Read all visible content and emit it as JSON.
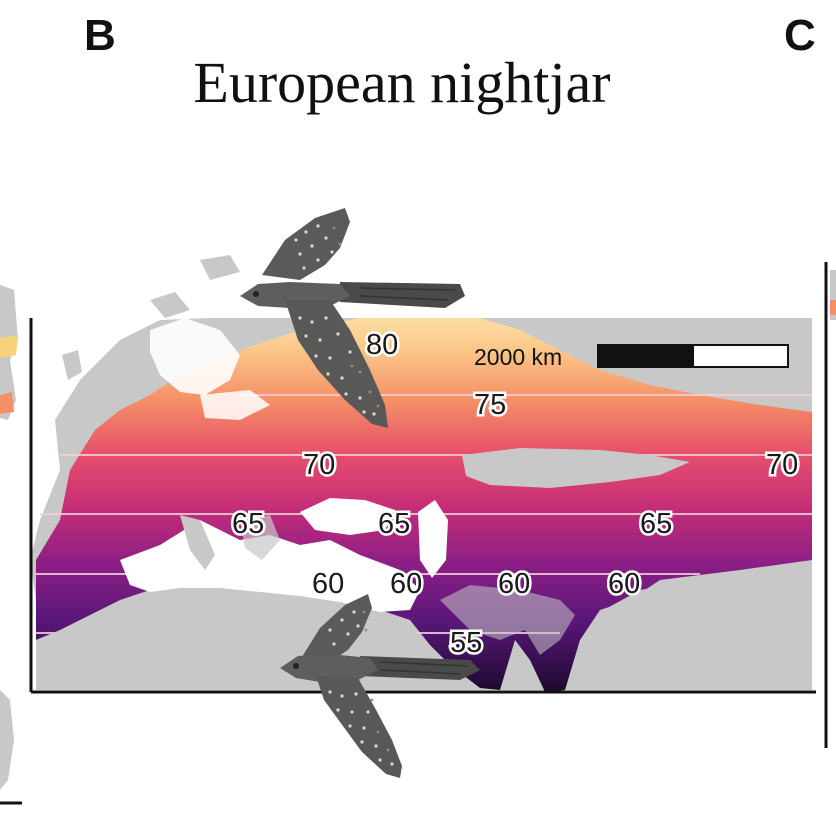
{
  "panel_left": "B",
  "panel_right": "C",
  "title": "European nightjar",
  "scale_bar": {
    "label": "2000 km"
  },
  "contours": [
    {
      "id": "c80",
      "label": "80"
    },
    {
      "id": "c75",
      "label": "75"
    },
    {
      "id": "c70a",
      "label": "70"
    },
    {
      "id": "c70b",
      "label": "70"
    },
    {
      "id": "c65a",
      "label": "65"
    },
    {
      "id": "c65b",
      "label": "65"
    },
    {
      "id": "c65c",
      "label": "65"
    },
    {
      "id": "c60a",
      "label": "60"
    },
    {
      "id": "c60b",
      "label": "60"
    },
    {
      "id": "c60c",
      "label": "60"
    },
    {
      "id": "c60d",
      "label": "60"
    },
    {
      "id": "c55",
      "label": "55"
    }
  ],
  "colors": {
    "land": "#c8c8c8",
    "north": "#fde6a8",
    "mid1": "#f7a36c",
    "mid2": "#e8466a",
    "mid3": "#b5247d",
    "mid4": "#6a1a8a",
    "south": "#1b0a2e",
    "bird_body": "#5a5a5a",
    "bird_spots": "#e2d9c6"
  }
}
